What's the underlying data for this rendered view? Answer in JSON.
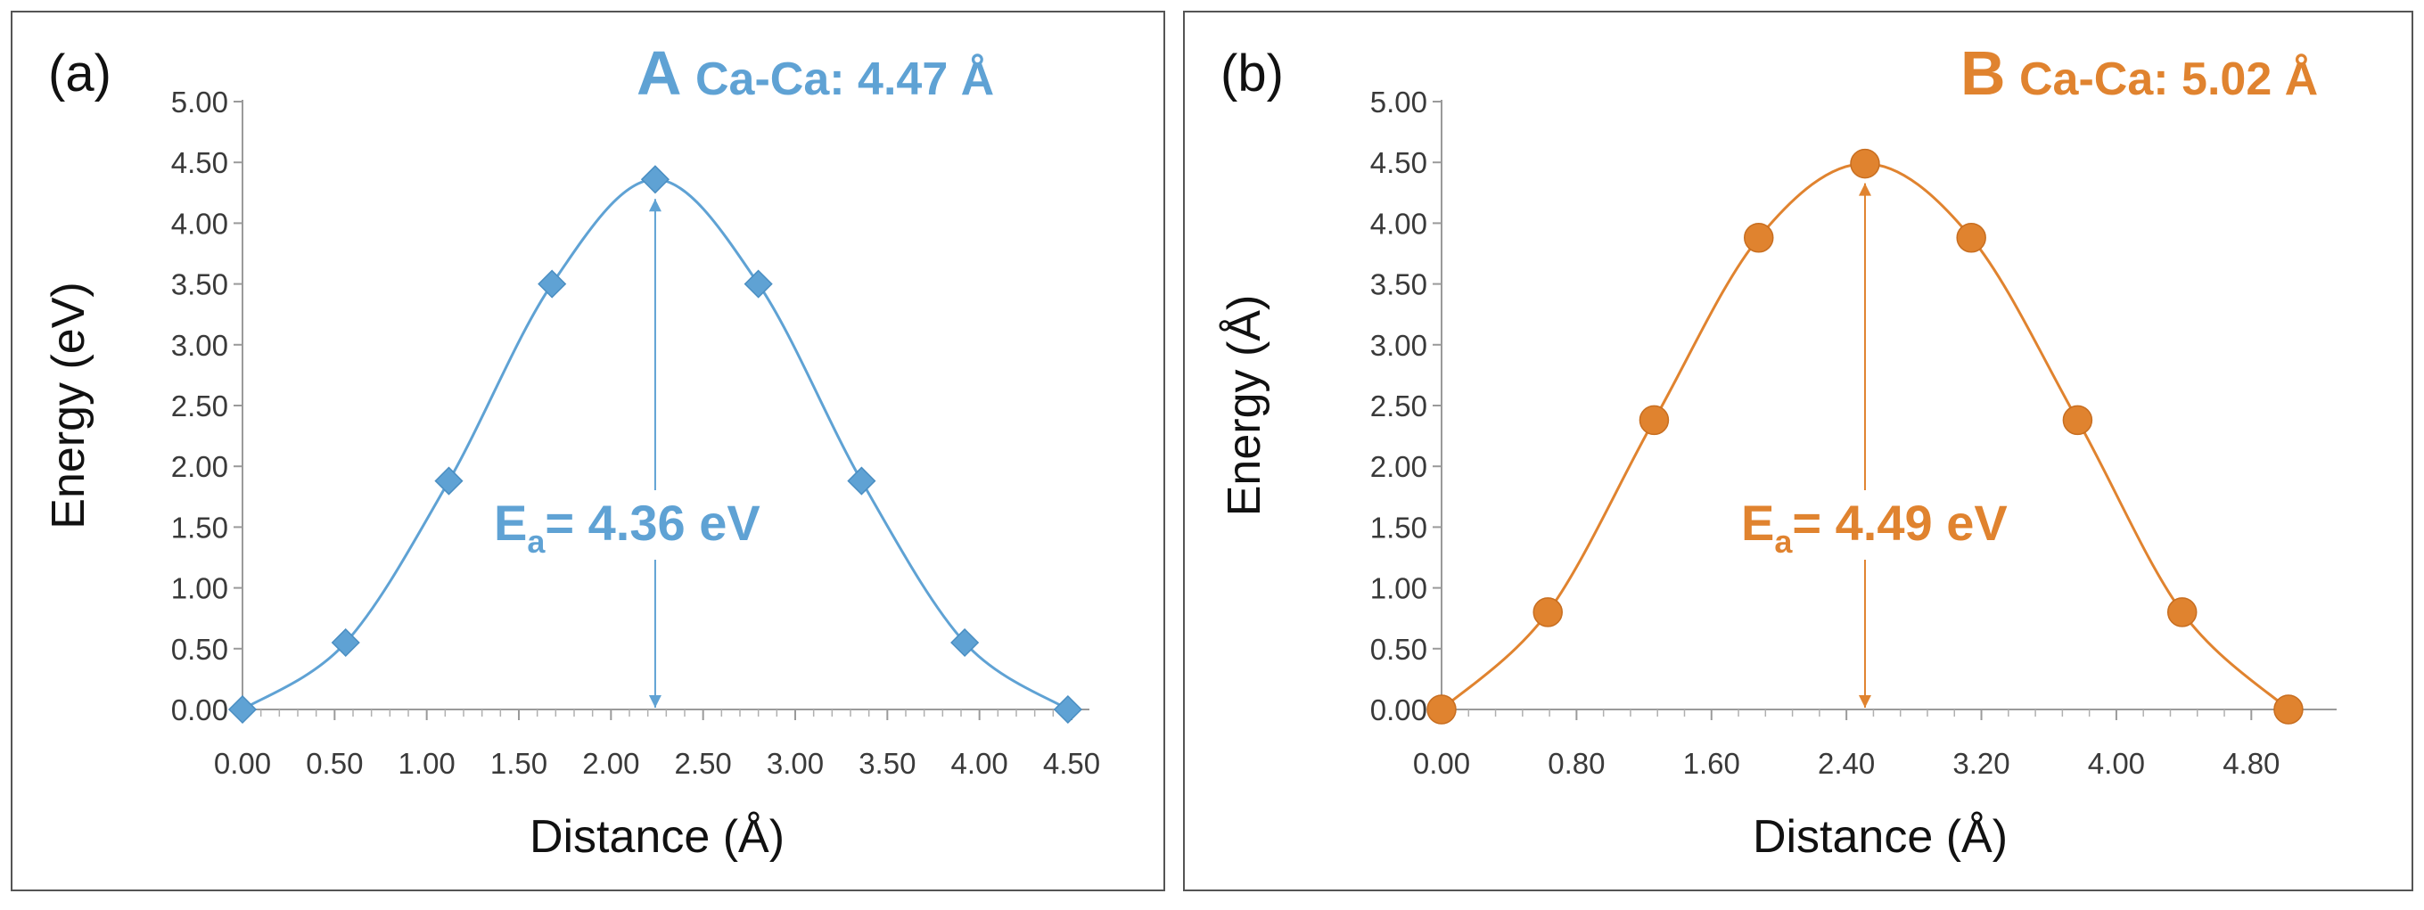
{
  "chart_data": [
    {
      "type": "line",
      "panel_label": "(a)",
      "title_letter": "A",
      "title_rest": "Ca-Ca: 4.47 Å",
      "xlabel": "Distance (Å)",
      "ylabel": "Energy (eV)",
      "xlim": [
        0,
        4.5
      ],
      "ylim": [
        0,
        5
      ],
      "x_ticks": [
        "0.00",
        "0.50",
        "1.00",
        "1.50",
        "2.00",
        "2.50",
        "3.00",
        "3.50",
        "4.00",
        "4.50"
      ],
      "y_ticks": [
        "0.00",
        "0.50",
        "1.00",
        "1.50",
        "2.00",
        "2.50",
        "3.00",
        "3.50",
        "4.00",
        "4.50",
        "5.00"
      ],
      "marker": "diamond",
      "color": "#5fa2d4",
      "annotation": {
        "prefix": "E",
        "sub": "a",
        "text": "= 4.36 eV",
        "x": 2.24,
        "y_top": 4.36,
        "y_bottom": 0
      },
      "series": [
        {
          "name": "A",
          "x": [
            0.0,
            0.56,
            1.12,
            1.68,
            2.24,
            2.8,
            3.36,
            3.92,
            4.48
          ],
          "y": [
            0.0,
            0.55,
            1.88,
            3.5,
            4.36,
            3.5,
            1.88,
            0.55,
            0.0
          ]
        }
      ]
    },
    {
      "type": "line",
      "panel_label": "(b)",
      "title_letter": "B",
      "title_rest": "Ca-Ca: 5.02 Å",
      "xlabel": "Distance (Å)",
      "ylabel": "Energy (Å)",
      "xlim": [
        0,
        5.2
      ],
      "ylim": [
        0,
        5
      ],
      "x_ticks": [
        "0.00",
        "0.80",
        "1.60",
        "2.40",
        "3.20",
        "4.00",
        "4.80"
      ],
      "y_ticks": [
        "0.00",
        "0.50",
        "1.00",
        "1.50",
        "2.00",
        "2.50",
        "3.00",
        "3.50",
        "4.00",
        "4.50",
        "5.00"
      ],
      "marker": "circle",
      "color": "#e0832f",
      "annotation": {
        "prefix": "E",
        "sub": "a",
        "text": "= 4.49 eV",
        "x": 2.51,
        "y_top": 4.49,
        "y_bottom": 0
      },
      "series": [
        {
          "name": "B",
          "x": [
            0.0,
            0.63,
            1.26,
            1.88,
            2.51,
            3.14,
            3.77,
            4.39,
            5.02
          ],
          "y": [
            0.0,
            0.8,
            2.38,
            3.88,
            4.49,
            3.88,
            2.38,
            0.8,
            0.0
          ]
        }
      ]
    }
  ]
}
